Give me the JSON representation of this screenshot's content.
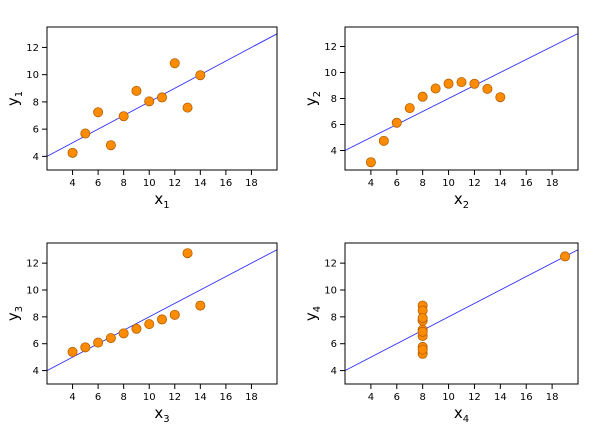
{
  "chart_data": [
    {
      "type": "scatter",
      "xlabel": "x",
      "xlabel_sub": "1",
      "ylabel": "y",
      "ylabel_sub": "1",
      "xlim": [
        2,
        20
      ],
      "ylim": [
        3,
        13.5
      ],
      "xticks": [
        4,
        6,
        8,
        10,
        12,
        14,
        16,
        18
      ],
      "yticks": [
        4,
        6,
        8,
        10,
        12
      ],
      "x": [
        10,
        8,
        13,
        9,
        11,
        14,
        6,
        4,
        12,
        7,
        5
      ],
      "y": [
        8.04,
        6.95,
        7.58,
        8.81,
        8.33,
        9.96,
        7.24,
        4.26,
        10.84,
        4.82,
        5.68
      ],
      "fit_line": {
        "intercept": 3.0,
        "slope": 0.5
      },
      "colors": {
        "marker_fill": "#ff8c00",
        "marker_edge": "#b35f00",
        "fit_line": "#3030ff"
      }
    },
    {
      "type": "scatter",
      "xlabel": "x",
      "xlabel_sub": "2",
      "ylabel": "y",
      "ylabel_sub": "2",
      "xlim": [
        2,
        20
      ],
      "ylim": [
        2.5,
        13.5
      ],
      "xticks": [
        4,
        6,
        8,
        10,
        12,
        14,
        16,
        18
      ],
      "yticks": [
        4,
        6,
        8,
        10,
        12
      ],
      "x": [
        10,
        8,
        13,
        9,
        11,
        14,
        6,
        4,
        12,
        7,
        5
      ],
      "y": [
        9.14,
        8.14,
        8.74,
        8.77,
        9.26,
        8.1,
        6.13,
        3.1,
        9.13,
        7.26,
        4.74
      ],
      "fit_line": {
        "intercept": 3.0,
        "slope": 0.5
      },
      "colors": {
        "marker_fill": "#ff8c00",
        "marker_edge": "#b35f00",
        "fit_line": "#3030ff"
      }
    },
    {
      "type": "scatter",
      "xlabel": "x",
      "xlabel_sub": "3",
      "ylabel": "y",
      "ylabel_sub": "3",
      "xlim": [
        2,
        20
      ],
      "ylim": [
        3,
        13.5
      ],
      "xticks": [
        4,
        6,
        8,
        10,
        12,
        14,
        16,
        18
      ],
      "yticks": [
        4,
        6,
        8,
        10,
        12
      ],
      "x": [
        10,
        8,
        13,
        9,
        11,
        14,
        6,
        4,
        12,
        7,
        5
      ],
      "y": [
        7.46,
        6.77,
        12.74,
        7.11,
        7.81,
        8.84,
        6.08,
        5.39,
        8.15,
        6.42,
        5.73
      ],
      "fit_line": {
        "intercept": 3.0,
        "slope": 0.5
      },
      "colors": {
        "marker_fill": "#ff8c00",
        "marker_edge": "#b35f00",
        "fit_line": "#3030ff"
      }
    },
    {
      "type": "scatter",
      "xlabel": "x",
      "xlabel_sub": "4",
      "ylabel": "y",
      "ylabel_sub": "4",
      "xlim": [
        2,
        20
      ],
      "ylim": [
        3,
        13.5
      ],
      "xticks": [
        4,
        6,
        8,
        10,
        12,
        14,
        16,
        18
      ],
      "yticks": [
        4,
        6,
        8,
        10,
        12
      ],
      "x": [
        8,
        8,
        8,
        8,
        8,
        8,
        8,
        19,
        8,
        8,
        8
      ],
      "y": [
        6.58,
        5.76,
        7.71,
        8.84,
        8.47,
        7.04,
        5.25,
        12.5,
        5.56,
        7.91,
        6.89
      ],
      "fit_line": {
        "intercept": 3.0,
        "slope": 0.5
      },
      "colors": {
        "marker_fill": "#ff8c00",
        "marker_edge": "#b35f00",
        "fit_line": "#3030ff"
      }
    }
  ]
}
